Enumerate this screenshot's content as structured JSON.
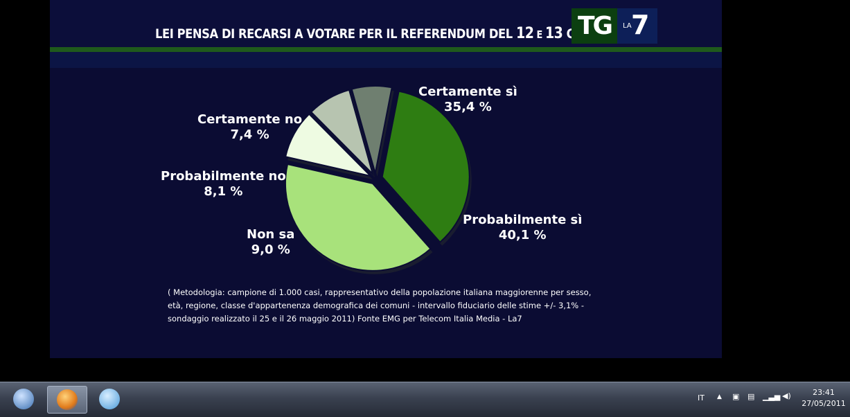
{
  "broadcast": {
    "title_part1": "LEI PENSA DI RECARSI A VOTARE PER IL REFERENDUM DEL ",
    "title_num1": "12",
    "title_e": " E ",
    "title_num2": "13",
    "title_tail": " G",
    "logo_tg": "TG",
    "logo_la": "LA",
    "logo_seven": "7"
  },
  "chart_data": {
    "type": "pie",
    "slices": [
      {
        "label": "Certamente sì",
        "value_text": "35,4 %",
        "value": 35.4,
        "color": "#2e7d12"
      },
      {
        "label": "Probabilmente sì",
        "value_text": "40,1 %",
        "value": 40.1,
        "color": "#a8e27b"
      },
      {
        "label": "Non sa",
        "value_text": "9,0 %",
        "value": 9.0,
        "color": "#eefbe2"
      },
      {
        "label": "Probabilmente no",
        "value_text": "8,1 %",
        "value": 8.1,
        "color": "#b7c4b0"
      },
      {
        "label": "Certamente no",
        "value_text": "7,4 %",
        "value": 7.4,
        "color": "#6f7f70"
      }
    ],
    "start_angle_deg": 11,
    "direction": "clockwise"
  },
  "methodology": {
    "line1": "( Metodologia: campione di 1.000 casi, rappresentativo della popolazione italiana  maggiorenne per sesso,",
    "line2": "età, regione, classe d'appartenenza demografica dei comuni - intervallo fiduciario delle stime  +/-   3,1%  -",
    "line3": "sondaggio realizzato il 25 e il 26 maggio 2011)  Fonte EMG per Telecom Italia Media  -  La7"
  },
  "taskbar": {
    "apps": [
      {
        "name": "thunderbird-icon",
        "color": "#3a6fb0",
        "active": false
      },
      {
        "name": "firefox-icon",
        "color": "#e07a1a",
        "active": true
      },
      {
        "name": "jdownloader-icon",
        "color": "#4a9ad8",
        "active": false
      }
    ],
    "language": "IT",
    "time": "23:41",
    "date": "27/05/2011"
  }
}
